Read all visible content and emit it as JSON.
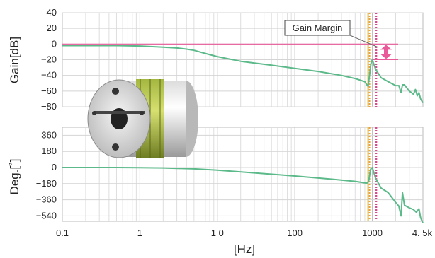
{
  "chart_data": [
    {
      "type": "line",
      "title": "",
      "xlabel": "",
      "ylabel": "Gain[dB]",
      "xscale": "log",
      "xlim": [
        0.1,
        4500
      ],
      "ylim": [
        -80,
        40
      ],
      "yticks": [
        "40",
        "20",
        "0",
        "−20",
        "−40",
        "−60",
        "−80"
      ],
      "grid": true,
      "series": [
        {
          "color": "#5cba8a",
          "x": [
            0.1,
            0.5,
            1,
            2,
            3,
            4,
            5,
            7,
            10,
            20,
            50,
            100,
            200,
            400,
            600,
            800,
            880,
            920,
            960,
            1000,
            1100,
            1300,
            1600,
            2000,
            2200,
            2350,
            2450,
            2600,
            3000,
            3400,
            3600,
            3800,
            4000,
            4200,
            4500
          ],
          "y": [
            -2,
            -2,
            -2.5,
            -4,
            -5,
            -6.5,
            -8,
            -12,
            -16,
            -22,
            -27,
            -31,
            -35,
            -40,
            -44,
            -48,
            -54,
            -40,
            -25,
            -20,
            -32,
            -43,
            -48,
            -53,
            -53,
            -62,
            -52,
            -52,
            -60,
            -64,
            -58,
            -66,
            -62,
            -70,
            -75
          ]
        }
      ],
      "reference_line": {
        "y": 0,
        "color": "#e85a9a"
      },
      "gain_margin_arrow": {
        "y_from": 0,
        "y_to": -20,
        "color": "#e85a9a"
      },
      "annotations": [
        {
          "text": "Gain Margin"
        }
      ],
      "vertical_markers": [
        {
          "x": 880,
          "color": "#f2c94c",
          "style": "solid"
        },
        {
          "x": 920,
          "color": "#e8a040",
          "style": "dotted"
        },
        {
          "x": 1100,
          "color": "#e85a9a",
          "style": "dotted"
        },
        {
          "x": 1130,
          "color": "#d44a8a",
          "style": "dotted"
        }
      ]
    },
    {
      "type": "line",
      "title": "",
      "xlabel": "[Hz]",
      "ylabel": "Deg.[˚]",
      "xscale": "log",
      "xlim": [
        0.1,
        4500
      ],
      "ylim": [
        -600,
        450
      ],
      "yticks": [
        "360",
        "180",
        "0",
        "−180",
        "−360",
        "−540"
      ],
      "xticks": [
        "0.1",
        "1",
        "1 0",
        "100",
        "1000",
        "4. 5k"
      ],
      "grid": true,
      "series": [
        {
          "color": "#5cba8a",
          "x": [
            0.1,
            0.5,
            1,
            2,
            5,
            10,
            30,
            100,
            300,
            600,
            850,
            900,
            950,
            1000,
            1050,
            1100,
            1300,
            1600,
            2000,
            2200,
            2350,
            2450,
            2600,
            3000,
            3400,
            3700,
            4000,
            4200,
            4500
          ],
          "y": [
            0,
            0,
            -2,
            -5,
            -15,
            -30,
            -60,
            -95,
            -130,
            -155,
            -175,
            -150,
            -20,
            0,
            -60,
            -120,
            -230,
            -280,
            -390,
            -430,
            -540,
            -280,
            -420,
            -450,
            -470,
            -500,
            -460,
            -560,
            -620
          ]
        }
      ],
      "vertical_markers": [
        {
          "x": 880,
          "color": "#f2c94c",
          "style": "solid"
        },
        {
          "x": 920,
          "color": "#e8a040",
          "style": "dotted"
        },
        {
          "x": 1100,
          "color": "#e85a9a",
          "style": "dotted"
        },
        {
          "x": 1130,
          "color": "#d44a8a",
          "style": "dotted"
        }
      ]
    }
  ]
}
